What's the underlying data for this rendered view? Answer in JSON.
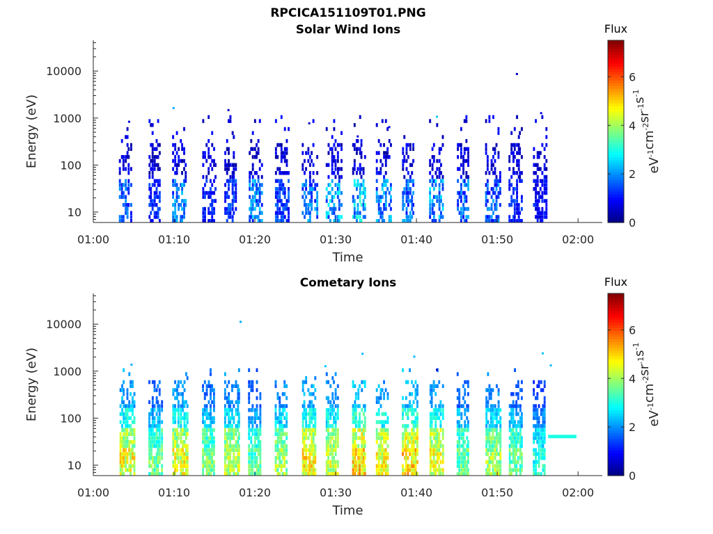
{
  "figure_title": "RPCICA151109T01.PNG",
  "colorbar_unit": "eV-1cm-2sr-1s-1",
  "chart_data": [
    {
      "type": "heatmap",
      "title": "Solar Wind Ions",
      "xlabel": "Time",
      "ylabel": "Energy (eV)",
      "y_scale": "log",
      "ylim": [
        6,
        45000
      ],
      "yticks": [
        10,
        100,
        1000,
        10000
      ],
      "ytick_labels": [
        "10",
        "100",
        "1000",
        "10000"
      ],
      "xlim": [
        "01:00",
        "02:03"
      ],
      "xticks": [
        "01:00",
        "01:10",
        "01:20",
        "01:30",
        "01:40",
        "01:50",
        "02:00"
      ],
      "colorbar": {
        "title": "Flux",
        "range": [
          0,
          7.5
        ],
        "ticks": [
          "0",
          "2",
          "4",
          "6"
        ],
        "colormap": "jet"
      },
      "bursts_time_min": [
        3.9,
        7.5,
        10.5,
        14.2,
        16.9,
        19.9,
        23.2,
        26.5,
        29.5,
        32.7,
        35.7,
        38.9,
        42.3,
        45.7,
        49.2,
        52.1,
        55.1
      ],
      "bursts_peak_flux": [
        2.2,
        1.6,
        2.6,
        1.6,
        1.8,
        2.6,
        1.9,
        2.4,
        3.0,
        3.2,
        2.6,
        2.4,
        2.8,
        2.3,
        2.2,
        1.7,
        1.4
      ],
      "isolated_points": [
        {
          "t": 4.3,
          "e": 820,
          "flux": 0.6
        },
        {
          "t": 9.8,
          "e": 1600,
          "flux": 2.2
        },
        {
          "t": 16.6,
          "e": 1450,
          "flux": 0.6
        },
        {
          "t": 26.6,
          "e": 760,
          "flux": 0.6
        },
        {
          "t": 32.6,
          "e": 400,
          "flux": 0.8
        },
        {
          "t": 36.5,
          "e": 630,
          "flux": 0.7
        },
        {
          "t": 42.4,
          "e": 1050,
          "flux": 2.4
        },
        {
          "t": 52.3,
          "e": 8500,
          "flux": 0.5
        },
        {
          "t": 55.3,
          "e": 1250,
          "flux": 0.8
        }
      ]
    },
    {
      "type": "heatmap",
      "title": "Cometary Ions",
      "xlabel": "Time",
      "ylabel": "Energy (eV)",
      "y_scale": "log",
      "ylim": [
        6,
        45000
      ],
      "yticks": [
        10,
        100,
        1000,
        10000
      ],
      "ytick_labels": [
        "10",
        "100",
        "1000",
        "10000"
      ],
      "xlim": [
        "01:00",
        "02:03"
      ],
      "xticks": [
        "01:00",
        "01:10",
        "01:20",
        "01:30",
        "01:40",
        "01:50",
        "02:00"
      ],
      "colorbar": {
        "title": "Flux",
        "range": [
          0,
          7.5
        ],
        "ticks": [
          "0",
          "2",
          "4",
          "6"
        ],
        "colormap": "jet"
      },
      "bursts_time_min": [
        3.9,
        7.5,
        10.5,
        14.2,
        16.9,
        19.9,
        23.2,
        26.5,
        29.5,
        32.7,
        35.7,
        38.9,
        42.3,
        45.7,
        49.2,
        52.1,
        55.1
      ],
      "bursts_peak_flux": [
        5.6,
        4.4,
        5.5,
        4.6,
        5.1,
        4.2,
        4.9,
        5.7,
        5.3,
        6.0,
        5.6,
        6.0,
        5.6,
        4.4,
        4.9,
        4.3,
        3.7
      ],
      "constant_band": {
        "t_start": 56.3,
        "t_end": 59.8,
        "e": 40,
        "flux": 3.0
      },
      "isolated_points": [
        {
          "t": 4.6,
          "e": 1350,
          "flux": 2.2
        },
        {
          "t": 18.1,
          "e": 11000,
          "flux": 2.2
        },
        {
          "t": 28.6,
          "e": 1250,
          "flux": 2.4
        },
        {
          "t": 33.2,
          "e": 2300,
          "flux": 2.3
        },
        {
          "t": 39.6,
          "e": 2000,
          "flux": 2.3
        },
        {
          "t": 42.4,
          "e": 1050,
          "flux": 0.6
        },
        {
          "t": 55.5,
          "e": 2350,
          "flux": 2.4
        },
        {
          "t": 56.5,
          "e": 1300,
          "flux": 2.3
        }
      ]
    }
  ]
}
